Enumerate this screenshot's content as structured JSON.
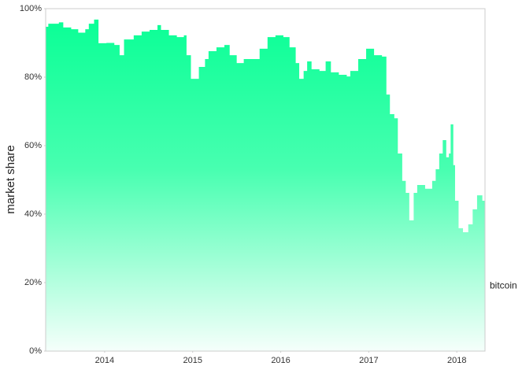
{
  "chart_data": {
    "type": "area",
    "y_label": "market share",
    "x": [
      2013.33,
      2013.36,
      2013.48,
      2013.53,
      2013.62,
      2013.7,
      2013.78,
      2013.82,
      2013.88,
      2013.93,
      2014.02,
      2014.11,
      2014.17,
      2014.22,
      2014.33,
      2014.42,
      2014.51,
      2014.6,
      2014.64,
      2014.73,
      2014.82,
      2014.9,
      2014.93,
      2014.98,
      2015.02,
      2015.07,
      2015.14,
      2015.18,
      2015.27,
      2015.36,
      2015.42,
      2015.5,
      2015.58,
      2015.67,
      2015.76,
      2015.85,
      2015.94,
      2016.03,
      2016.1,
      2016.17,
      2016.21,
      2016.26,
      2016.3,
      2016.35,
      2016.44,
      2016.51,
      2016.57,
      2016.66,
      2016.75,
      2016.79,
      2016.88,
      2016.97,
      2017.06,
      2017.15,
      2017.2,
      2017.24,
      2017.29,
      2017.33,
      2017.38,
      2017.42,
      2017.46,
      2017.51,
      2017.55,
      2017.64,
      2017.72,
      2017.76,
      2017.8,
      2017.84,
      2017.88,
      2017.91,
      2017.93,
      2017.96,
      2017.98,
      2018.02,
      2018.07,
      2018.13,
      2018.18,
      2018.23,
      2018.29,
      2018.32
    ],
    "series": [
      {
        "name": "bitcoin",
        "color": "#0aff96",
        "values": [
          94.7,
          95.6,
          96,
          94.5,
          94,
          93,
          94,
          95.6,
          96.8,
          89.9,
          90,
          89.4,
          86.4,
          91,
          92.2,
          93.3,
          93.8,
          95.2,
          93.8,
          92.2,
          91.7,
          92.2,
          86.4,
          79.5,
          79.5,
          83,
          85.3,
          87.6,
          88.7,
          89.4,
          86.4,
          84.1,
          85.3,
          85.3,
          88.3,
          91.7,
          92.2,
          91.7,
          88.7,
          84.1,
          79.5,
          81.8,
          84.6,
          82.3,
          81.8,
          84.6,
          81.4,
          80.7,
          80.2,
          81.8,
          85.3,
          88.3,
          86.4,
          86,
          74.9,
          69.2,
          68,
          57.7,
          49.7,
          46.2,
          38.2,
          46.2,
          48.5,
          47.4,
          49.7,
          53.1,
          57.7,
          61.6,
          56.6,
          57.7,
          66.2,
          54.3,
          43.9,
          35.9,
          34.7,
          37,
          41.4,
          45.5,
          43.9,
          38.6
        ]
      }
    ],
    "xlim": [
      2013.33,
      2018.32
    ],
    "xticks": [
      2014,
      2015,
      2016,
      2017,
      2018
    ],
    "ylim": [
      0,
      100
    ],
    "yticks": [
      {
        "value": 0,
        "label": "0%"
      },
      {
        "value": 20,
        "label": "20%"
      },
      {
        "value": 40,
        "label": "40%"
      },
      {
        "value": 60,
        "label": "60%"
      },
      {
        "value": 80,
        "label": "80%"
      },
      {
        "value": 100,
        "label": "100%"
      }
    ],
    "grid": false
  }
}
